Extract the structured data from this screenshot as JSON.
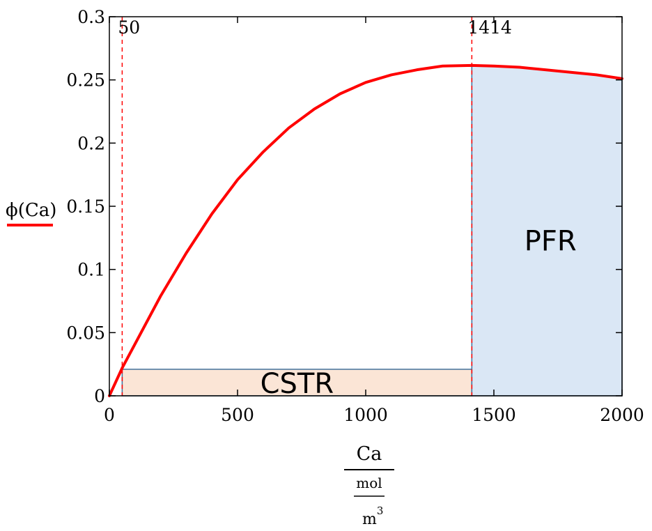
{
  "chart_data": {
    "type": "line",
    "ylabel": "ϕ(Ca)",
    "xlabel_numerator": "Ca",
    "xlabel_unit_top": "mol",
    "xlabel_unit_bottom": "m",
    "xlabel_unit_exp": "3",
    "xlim": [
      0,
      2000
    ],
    "ylim": [
      0,
      0.3
    ],
    "x_ticks": [
      0,
      500,
      1000,
      1500,
      2000
    ],
    "x_tick_labels": [
      "0",
      "500",
      "1000",
      "1500",
      "2000"
    ],
    "y_ticks": [
      0,
      0.05,
      0.1,
      0.15,
      0.2,
      0.25,
      0.3
    ],
    "y_tick_labels": [
      "0",
      "0.05",
      "0.1",
      "0.15",
      "0.2",
      "0.25",
      "0.3"
    ],
    "series": [
      {
        "name": "ϕ(Ca)",
        "color": "#ff0000",
        "x": [
          0,
          50,
          100,
          200,
          300,
          400,
          500,
          600,
          700,
          800,
          900,
          1000,
          1100,
          1200,
          1300,
          1414,
          1500,
          1600,
          1700,
          1800,
          1900,
          2000
        ],
        "y": [
          0,
          0.022,
          0.041,
          0.079,
          0.113,
          0.144,
          0.171,
          0.193,
          0.212,
          0.227,
          0.239,
          0.248,
          0.254,
          0.258,
          0.261,
          0.2615,
          0.261,
          0.26,
          0.258,
          0.256,
          0.254,
          0.251
        ]
      }
    ],
    "markers": [
      {
        "x": 50,
        "label": "50",
        "color": "#ff0000"
      },
      {
        "x": 1414,
        "label": "1414",
        "color": "#ff0000"
      }
    ],
    "regions": [
      {
        "name": "CSTR",
        "x_start": 50,
        "x_end": 1414,
        "y_top": 0.021,
        "fill": "#fbe5d6",
        "stroke": "#41719c"
      },
      {
        "name": "PFR",
        "x_start": 1414,
        "x_end": 2000,
        "fill": "#dae7f5",
        "stroke": "#41719c"
      }
    ],
    "legend": {
      "line_color": "#ff0000",
      "placement": "left, under y-axis label"
    }
  }
}
